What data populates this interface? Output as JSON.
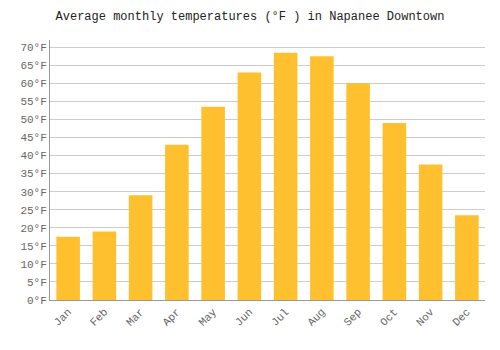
{
  "chart_data": {
    "type": "bar",
    "title": "Average monthly temperatures (°F ) in Napanee Downtown",
    "categories": [
      "Jan",
      "Feb",
      "Mar",
      "Apr",
      "May",
      "Jun",
      "Jul",
      "Aug",
      "Sep",
      "Oct",
      "Nov",
      "Dec"
    ],
    "values": [
      17.5,
      19.0,
      29.0,
      43.0,
      53.5,
      63.0,
      68.5,
      67.5,
      60.0,
      49.0,
      37.5,
      23.5
    ],
    "color": "#FFC030",
    "ylim": [
      0,
      72
    ],
    "yticks": [
      {
        "value": 0,
        "label": "0°F"
      },
      {
        "value": 5,
        "label": "5°F"
      },
      {
        "value": 10,
        "label": "10°F"
      },
      {
        "value": 15,
        "label": "15°F"
      },
      {
        "value": 20,
        "label": "20°F"
      },
      {
        "value": 25,
        "label": "25°F"
      },
      {
        "value": 30,
        "label": "30°F"
      },
      {
        "value": 35,
        "label": "35°F"
      },
      {
        "value": 40,
        "label": "40°F"
      },
      {
        "value": 45,
        "label": "45°F"
      },
      {
        "value": 50,
        "label": "50°F"
      },
      {
        "value": 55,
        "label": "55°F"
      },
      {
        "value": 60,
        "label": "60°F"
      },
      {
        "value": 65,
        "label": "65°F"
      },
      {
        "value": 70,
        "label": "70°F"
      }
    ],
    "grid": true
  }
}
